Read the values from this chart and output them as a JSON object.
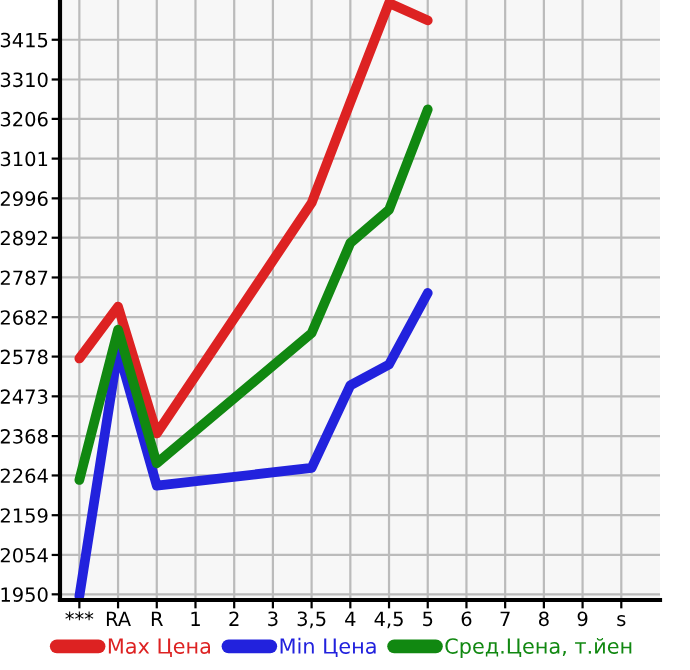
{
  "chart_data": {
    "type": "line",
    "categories": [
      "***",
      "RA",
      "R",
      "1",
      "2",
      "3",
      "3,5",
      "4",
      "4,5",
      "5",
      "6",
      "7",
      "8",
      "9",
      "s"
    ],
    "series": [
      {
        "name": "Max Цена",
        "color": "#dd2222",
        "values": [
          2573,
          2710,
          2375,
          null,
          null,
          null,
          2984,
          3250,
          3512,
          3466,
          null,
          null,
          null,
          null,
          null
        ]
      },
      {
        "name": "Min Цена",
        "color": "#2222dd",
        "values": [
          1945,
          2596,
          2237,
          null,
          null,
          null,
          2284,
          2502,
          2557,
          2746,
          null,
          null,
          null,
          null,
          null
        ]
      },
      {
        "name": "Сред.Цена, т.йен",
        "color": "#118811",
        "values": [
          2252,
          2649,
          2296,
          null,
          null,
          null,
          2640,
          2878,
          2966,
          3231,
          null,
          null,
          null,
          null,
          null
        ]
      }
    ],
    "ylim": [
      1935,
      3520
    ],
    "yticks": [
      1950,
      2054,
      2159,
      2264,
      2368,
      2473,
      2578,
      2682,
      2787,
      2892,
      2996,
      3101,
      3206,
      3310,
      3415
    ],
    "grid": true,
    "legend": "bottom",
    "marker": "none",
    "line_style": "solid"
  }
}
